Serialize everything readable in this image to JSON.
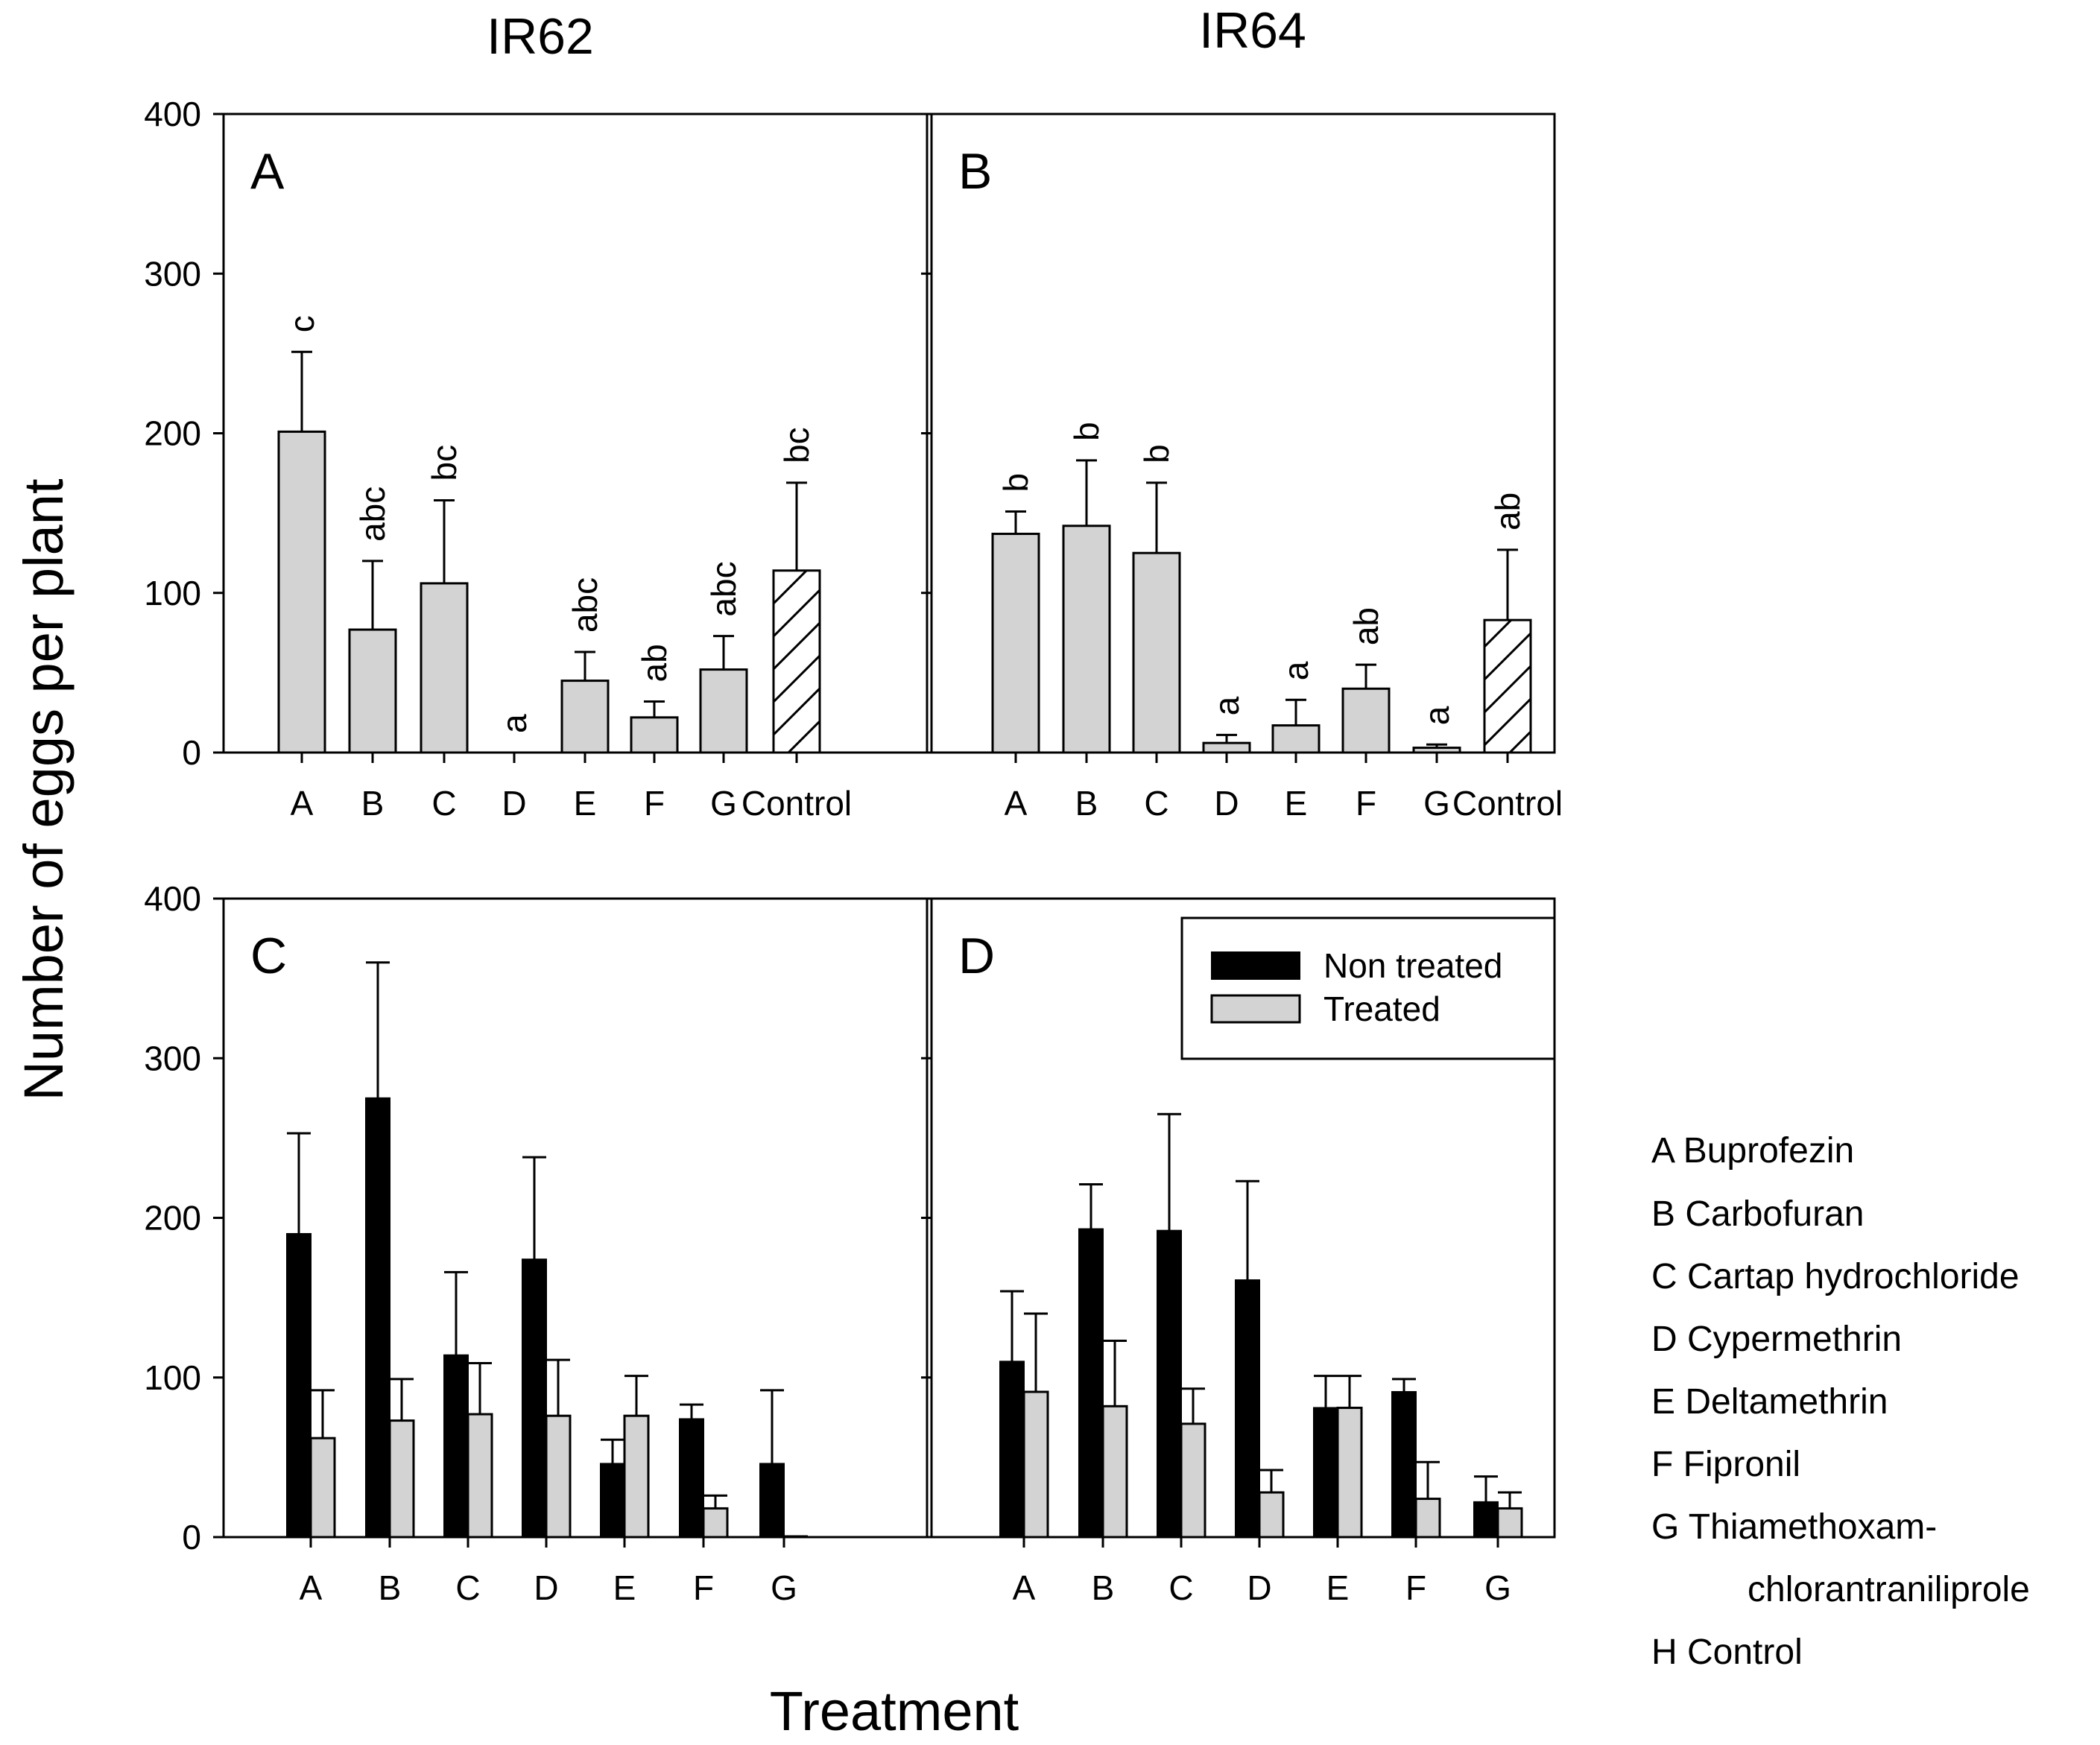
{
  "figure": {
    "column_titles": [
      "IR62",
      "IR64"
    ],
    "ylabel": "Number of eggs per plant",
    "xlabel": "Treatment",
    "treatment_key": [
      "A Buprofezin",
      "B Carbofuran",
      "C Cartap hydrochloride",
      "D Cypermethrin",
      "E Deltamethrin",
      "F Fipronil",
      "G Thiamethoxam-",
      "chlorantraniliprole",
      "H Control"
    ]
  },
  "colors": {
    "treated": "#d3d3d3",
    "non_treated": "#000000",
    "axis": "#000000",
    "background": "#ffffff"
  },
  "chart_data": [
    {
      "type": "bar",
      "panel": "A",
      "cultivar": "IR62",
      "categories": [
        "A",
        "B",
        "C",
        "D",
        "E",
        "F",
        "G",
        "Control"
      ],
      "values": [
        201,
        77,
        106,
        0,
        45,
        22,
        52,
        114
      ],
      "errors": [
        50,
        43,
        52,
        0,
        18,
        10,
        21,
        55
      ],
      "significance_letters": [
        "c",
        "abc",
        "bc",
        "a",
        "abc",
        "ab",
        "abc",
        "bc"
      ],
      "control_hatched": true,
      "ylim": [
        0,
        400
      ],
      "yticks": [
        0,
        100,
        200,
        300,
        400
      ]
    },
    {
      "type": "bar",
      "panel": "B",
      "cultivar": "IR64",
      "categories": [
        "A",
        "B",
        "C",
        "D",
        "E",
        "F",
        "G",
        "Control"
      ],
      "values": [
        137,
        142,
        125,
        6,
        17,
        40,
        3,
        83
      ],
      "errors": [
        14,
        41,
        44,
        5,
        16,
        15,
        2,
        44
      ],
      "significance_letters": [
        "b",
        "b",
        "b",
        "a",
        "a",
        "ab",
        "a",
        "ab"
      ],
      "control_hatched": true,
      "ylim": [
        0,
        400
      ],
      "yticks": [
        0,
        100,
        200,
        300,
        400
      ]
    },
    {
      "type": "bar",
      "panel": "C",
      "cultivar": "IR62",
      "categories": [
        "A",
        "B",
        "C",
        "D",
        "E",
        "F",
        "G"
      ],
      "series": [
        {
          "name": "Non treated",
          "values": [
            190,
            275,
            114,
            174,
            46,
            74,
            46
          ],
          "errors": [
            63,
            85,
            52,
            64,
            15,
            9,
            46
          ]
        },
        {
          "name": "Treated",
          "values": [
            62,
            73,
            77,
            76,
            76,
            18,
            0
          ],
          "errors": [
            30,
            26,
            32,
            35,
            25,
            8,
            0
          ]
        }
      ],
      "ylim": [
        0,
        400
      ],
      "yticks": [
        0,
        100,
        200,
        300,
        400
      ]
    },
    {
      "type": "bar",
      "panel": "D",
      "cultivar": "IR64",
      "categories": [
        "A",
        "B",
        "C",
        "D",
        "E",
        "F",
        "G"
      ],
      "series": [
        {
          "name": "Non treated",
          "values": [
            110,
            193,
            192,
            161,
            81,
            91,
            22
          ],
          "errors": [
            44,
            28,
            73,
            62,
            20,
            8,
            16
          ]
        },
        {
          "name": "Treated",
          "values": [
            91,
            82,
            71,
            28,
            81,
            24,
            18
          ],
          "errors": [
            49,
            41,
            22,
            14,
            20,
            23,
            10
          ]
        }
      ],
      "legend": {
        "entries": [
          "Non treated",
          "Treated"
        ],
        "position": "top-right"
      },
      "ylim": [
        0,
        400
      ],
      "yticks": [
        0,
        100,
        200,
        300,
        400
      ]
    }
  ]
}
